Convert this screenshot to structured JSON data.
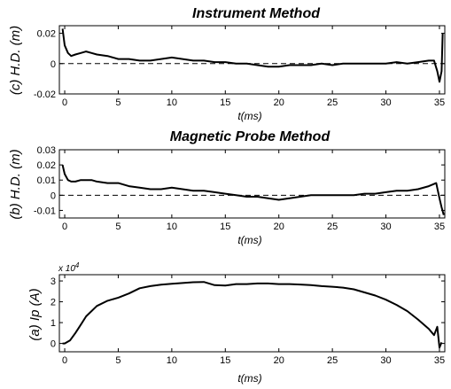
{
  "chart_data": [
    {
      "type": "line",
      "title": "Instrument Method",
      "xlabel": "t(ms)",
      "ylabel": "(c) H.D. (m)",
      "xlim": [
        -0.5,
        35.5
      ],
      "ylim": [
        -0.02,
        0.025
      ],
      "xticks": [
        "0",
        "5",
        "10",
        "15",
        "20",
        "25",
        "30",
        "35"
      ],
      "yticks": [
        "-0.02",
        "0",
        "0.02"
      ],
      "zero_line": "dashed",
      "series": [
        {
          "x": [
            -0.2,
            0,
            0.3,
            0.6,
            1,
            1.5,
            2,
            2.5,
            3,
            4,
            5,
            6,
            7,
            8,
            9,
            10,
            11,
            12,
            13,
            14,
            15,
            16,
            17,
            18,
            19,
            20,
            21,
            22,
            23,
            24,
            25,
            26,
            27,
            28,
            29,
            30,
            31,
            32,
            33,
            34,
            34.5,
            34.8,
            35,
            35.2,
            35.3
          ],
          "y": [
            0.023,
            0.012,
            0.007,
            0.005,
            0.006,
            0.007,
            0.008,
            0.007,
            0.006,
            0.005,
            0.003,
            0.003,
            0.002,
            0.002,
            0.003,
            0.004,
            0.003,
            0.002,
            0.002,
            0.001,
            0.001,
            0.0,
            0.0,
            -0.001,
            -0.002,
            -0.002,
            -0.001,
            -0.001,
            -0.001,
            0.0,
            -0.001,
            0.0,
            0.0,
            0.0,
            0.0,
            0.0,
            0.001,
            0.0,
            0.001,
            0.002,
            0.002,
            -0.005,
            -0.012,
            -0.005,
            0.02
          ]
        }
      ]
    },
    {
      "type": "line",
      "title": "Magnetic Probe Method",
      "xlabel": "t(ms)",
      "ylabel": "(b) H.D. (m)",
      "xlim": [
        -0.5,
        35.5
      ],
      "ylim": [
        -0.015,
        0.03
      ],
      "xticks": [
        "0",
        "5",
        "10",
        "15",
        "20",
        "25",
        "30",
        "35"
      ],
      "yticks": [
        "-0.01",
        "0",
        "0.01",
        "0.02",
        "0.03"
      ],
      "zero_line": "dashed",
      "series": [
        {
          "x": [
            -0.2,
            0,
            0.3,
            0.6,
            1,
            1.5,
            2,
            2.5,
            3,
            4,
            5,
            6,
            7,
            8,
            9,
            10,
            11,
            12,
            13,
            14,
            15,
            16,
            17,
            18,
            19,
            20,
            21,
            22,
            23,
            24,
            25,
            26,
            27,
            28,
            29,
            30,
            31,
            32,
            33,
            34,
            34.7,
            35,
            35.2,
            35.4
          ],
          "y": [
            0.02,
            0.014,
            0.01,
            0.009,
            0.009,
            0.01,
            0.01,
            0.01,
            0.009,
            0.008,
            0.008,
            0.006,
            0.005,
            0.004,
            0.004,
            0.005,
            0.004,
            0.003,
            0.003,
            0.002,
            0.001,
            0.0,
            -0.001,
            -0.001,
            -0.002,
            -0.003,
            -0.002,
            -0.001,
            0.0,
            0.0,
            0.0,
            0.0,
            0.0,
            0.001,
            0.001,
            0.002,
            0.003,
            0.003,
            0.004,
            0.006,
            0.008,
            -0.002,
            -0.008,
            -0.013
          ]
        }
      ]
    },
    {
      "type": "line",
      "title": "",
      "xlabel": "t(ms)",
      "ylabel": "(a) Ip (A)",
      "xlim": [
        -0.5,
        35.5
      ],
      "ylim": [
        -0.4,
        3.3
      ],
      "scale_label": "x 10",
      "scale_exponent": "4",
      "xticks": [
        "0",
        "5",
        "10",
        "15",
        "20",
        "25",
        "30",
        "35"
      ],
      "yticks": [
        "0",
        "1",
        "2",
        "3"
      ],
      "series": [
        {
          "x": [
            -0.2,
            0,
            0.5,
            1,
            1.5,
            2,
            3,
            4,
            5,
            6,
            7,
            8,
            9,
            10,
            11,
            12,
            13,
            14,
            15,
            16,
            17,
            18,
            19,
            20,
            21,
            22,
            23,
            24,
            25,
            26,
            27,
            28,
            29,
            30,
            31,
            32,
            33,
            34,
            34.5,
            34.8,
            35,
            35.2
          ],
          "y": [
            0.0,
            0.0,
            0.15,
            0.5,
            0.9,
            1.3,
            1.8,
            2.05,
            2.2,
            2.4,
            2.65,
            2.75,
            2.82,
            2.86,
            2.9,
            2.94,
            2.95,
            2.8,
            2.78,
            2.85,
            2.85,
            2.88,
            2.88,
            2.85,
            2.85,
            2.83,
            2.8,
            2.75,
            2.72,
            2.68,
            2.6,
            2.45,
            2.3,
            2.1,
            1.85,
            1.55,
            1.15,
            0.7,
            0.4,
            0.8,
            -0.2,
            0.05
          ]
        }
      ]
    }
  ]
}
